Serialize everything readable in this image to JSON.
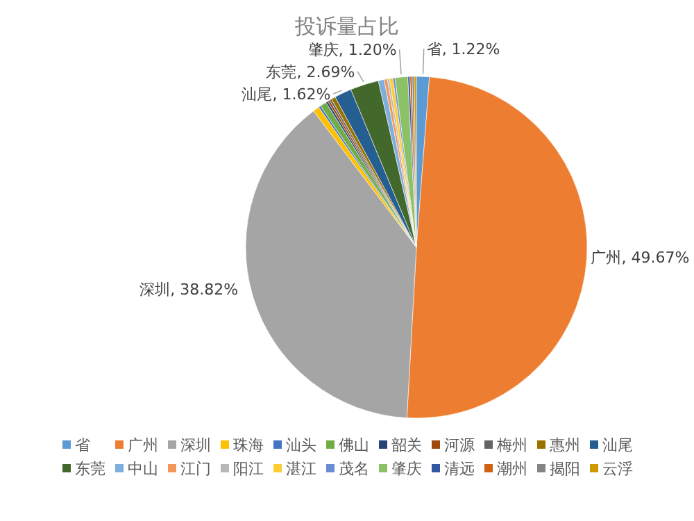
{
  "chart_data": {
    "type": "pie",
    "title": "投诉量占比",
    "categories": [
      "省",
      "广州",
      "深圳",
      "珠海",
      "汕头",
      "佛山",
      "韶关",
      "河源",
      "梅州",
      "惠州",
      "汕尾",
      "东莞",
      "中山",
      "江门",
      "阳江",
      "湛江",
      "茂名",
      "肇庆",
      "清远",
      "潮州",
      "揭阳",
      "云浮"
    ],
    "values": [
      1.22,
      49.67,
      38.82,
      0.6,
      0.2,
      0.6,
      0.2,
      0.2,
      0.2,
      0.4,
      1.62,
      2.69,
      0.55,
      0.3,
      0.2,
      0.33,
      0.2,
      1.2,
      0.2,
      0.2,
      0.2,
      0.2
    ],
    "value_labels": [
      "省, 1.22%",
      "广州, 49.67%",
      "深圳, 38.82%",
      null,
      null,
      null,
      null,
      null,
      null,
      null,
      "汕尾, 1.62%",
      "东莞, 2.69%",
      null,
      null,
      null,
      null,
      null,
      "肇庆, 1.20%",
      null,
      null,
      null,
      null
    ],
    "colors": [
      "#5b9bd5",
      "#ed7d31",
      "#a5a5a5",
      "#ffc000",
      "#4472c4",
      "#70ad47",
      "#264478",
      "#9e480e",
      "#636363",
      "#997300",
      "#255e91",
      "#43682b",
      "#7cafdd",
      "#f1975a",
      "#b7b7b7",
      "#ffcd33",
      "#698ed0",
      "#8cc168",
      "#335aa1",
      "#d26012",
      "#848484",
      "#cc9a00"
    ],
    "legend": "bottom"
  }
}
